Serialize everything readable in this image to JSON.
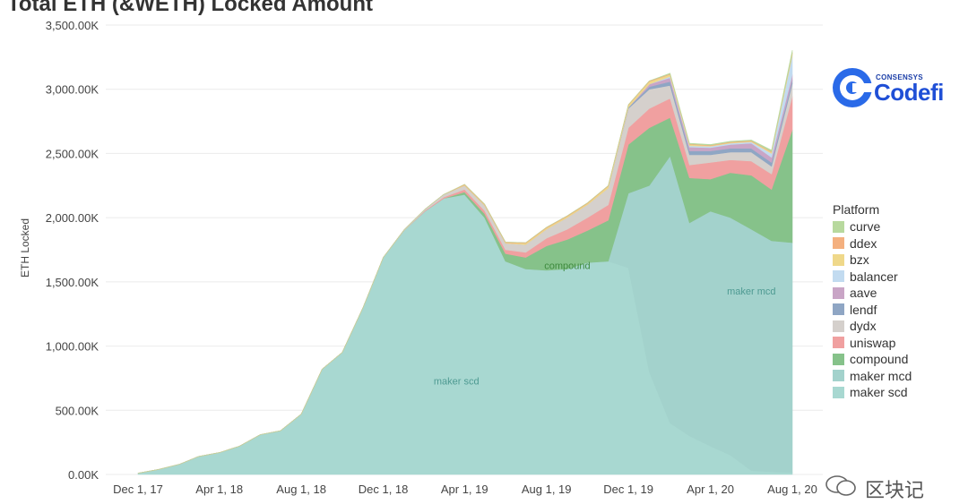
{
  "chart_data": {
    "type": "area",
    "stacked": true,
    "title": "Total ETH (&WETH) Locked Amount",
    "ylabel": "ETH Locked",
    "xlabel": "",
    "x_range": [
      "2017-12-01",
      "2020-08-01"
    ],
    "ylim": [
      0,
      3500000
    ],
    "y_ticks": [
      0,
      500000,
      1000000,
      1500000,
      2000000,
      2500000,
      3000000,
      3500000
    ],
    "y_tick_labels": [
      "0.00K",
      "500.00K",
      "1,000.00K",
      "1,500.00K",
      "2,000.00K",
      "2,500.00K",
      "3,000.00K",
      "3,500.00K"
    ],
    "x_tick_labels": [
      "Dec 1, 17",
      "Apr 1, 18",
      "Aug 1, 18",
      "Dec 1, 18",
      "Apr 1, 19",
      "Aug 1, 19",
      "Dec 1, 19",
      "Apr 1, 20",
      "Aug 1, 20"
    ],
    "grid": true,
    "legend_position": "right",
    "legend_title": "Platform",
    "x": [
      "2017-12-01",
      "2018-01-01",
      "2018-02-01",
      "2018-03-01",
      "2018-04-01",
      "2018-05-01",
      "2018-06-01",
      "2018-07-01",
      "2018-08-01",
      "2018-09-01",
      "2018-10-01",
      "2018-11-01",
      "2018-12-01",
      "2019-01-01",
      "2019-02-01",
      "2019-03-01",
      "2019-04-01",
      "2019-05-01",
      "2019-06-01",
      "2019-07-01",
      "2019-08-01",
      "2019-09-01",
      "2019-10-01",
      "2019-11-01",
      "2019-12-01",
      "2020-01-01",
      "2020-02-01",
      "2020-03-01",
      "2020-04-01",
      "2020-05-01",
      "2020-06-01",
      "2020-07-01",
      "2020-08-01"
    ],
    "series": [
      {
        "name": "maker scd",
        "color": "#a8d8d1",
        "values": [
          10000,
          40000,
          80000,
          140000,
          170000,
          220000,
          310000,
          340000,
          470000,
          820000,
          950000,
          1300000,
          1690000,
          1900000,
          2050000,
          2150000,
          2180000,
          2000000,
          1660000,
          1600000,
          1590000,
          1600000,
          1650000,
          1660000,
          1610000,
          800000,
          400000,
          300000,
          220000,
          150000,
          30000,
          20000,
          15000
        ]
      },
      {
        "name": "maker mcd",
        "color": "#a3d2cc",
        "values": [
          0,
          0,
          0,
          0,
          0,
          0,
          0,
          0,
          0,
          0,
          0,
          0,
          0,
          0,
          0,
          0,
          0,
          0,
          0,
          0,
          0,
          0,
          0,
          0,
          580000,
          1450000,
          2080000,
          1660000,
          1830000,
          1850000,
          1880000,
          1800000,
          1790000
        ]
      },
      {
        "name": "compound",
        "color": "#86c28a",
        "values": [
          0,
          0,
          0,
          0,
          0,
          0,
          0,
          0,
          0,
          0,
          0,
          0,
          0,
          0,
          0,
          0,
          20000,
          30000,
          60000,
          90000,
          190000,
          230000,
          250000,
          320000,
          380000,
          450000,
          300000,
          350000,
          250000,
          350000,
          420000,
          400000,
          880000
        ]
      },
      {
        "name": "uniswap",
        "color": "#f0a0a0",
        "values": [
          0,
          0,
          0,
          0,
          0,
          0,
          0,
          0,
          0,
          0,
          0,
          0,
          0,
          0,
          5000,
          10000,
          20000,
          25000,
          30000,
          40000,
          60000,
          80000,
          100000,
          120000,
          130000,
          150000,
          150000,
          100000,
          130000,
          100000,
          110000,
          120000,
          260000
        ]
      },
      {
        "name": "dydx",
        "color": "#d5d0cc",
        "values": [
          0,
          0,
          0,
          0,
          0,
          0,
          0,
          0,
          0,
          0,
          0,
          0,
          0,
          5000,
          10000,
          20000,
          30000,
          40000,
          50000,
          60000,
          70000,
          90000,
          100000,
          130000,
          150000,
          150000,
          100000,
          80000,
          60000,
          60000,
          70000,
          60000,
          100000
        ]
      },
      {
        "name": "lendf",
        "color": "#8fa6c4",
        "values": [
          0,
          0,
          0,
          0,
          0,
          0,
          0,
          0,
          0,
          0,
          0,
          0,
          0,
          0,
          0,
          0,
          0,
          0,
          0,
          0,
          0,
          0,
          0,
          0,
          10000,
          20000,
          30000,
          30000,
          30000,
          30000,
          30000,
          30000,
          30000
        ]
      },
      {
        "name": "aave",
        "color": "#c9a5c6",
        "values": [
          0,
          0,
          0,
          0,
          0,
          0,
          0,
          0,
          0,
          0,
          0,
          0,
          0,
          0,
          0,
          0,
          0,
          0,
          0,
          0,
          0,
          0,
          0,
          0,
          0,
          20000,
          30000,
          30000,
          25000,
          30000,
          40000,
          40000,
          40000
        ]
      },
      {
        "name": "balancer",
        "color": "#c2dbf0",
        "values": [
          0,
          0,
          0,
          0,
          0,
          0,
          0,
          0,
          0,
          0,
          0,
          0,
          0,
          0,
          0,
          0,
          0,
          0,
          0,
          0,
          0,
          0,
          0,
          0,
          0,
          0,
          10000,
          10000,
          10000,
          10000,
          10000,
          30000,
          150000
        ]
      },
      {
        "name": "bzx",
        "color": "#efd88a",
        "values": [
          0,
          0,
          0,
          0,
          0,
          0,
          0,
          0,
          0,
          0,
          0,
          0,
          0,
          0,
          0,
          0,
          5000,
          5000,
          5000,
          10000,
          10000,
          10000,
          10000,
          15000,
          15000,
          20000,
          15000,
          10000,
          5000,
          5000,
          5000,
          10000,
          15000
        ]
      },
      {
        "name": "ddex",
        "color": "#f4b07f",
        "values": [
          0,
          0,
          0,
          0,
          0,
          0,
          0,
          0,
          0,
          0,
          0,
          0,
          0,
          0,
          0,
          0,
          5000,
          5000,
          5000,
          5000,
          5000,
          5000,
          5000,
          5000,
          5000,
          5000,
          5000,
          5000,
          5000,
          5000,
          5000,
          5000,
          5000
        ]
      },
      {
        "name": "curve",
        "color": "#b8d99e",
        "values": [
          0,
          0,
          0,
          0,
          0,
          0,
          0,
          0,
          0,
          0,
          0,
          0,
          0,
          0,
          0,
          0,
          0,
          0,
          0,
          0,
          0,
          0,
          0,
          0,
          0,
          0,
          5000,
          5000,
          5000,
          5000,
          5000,
          10000,
          20000
        ]
      }
    ],
    "legend_order": [
      "curve",
      "ddex",
      "bzx",
      "balancer",
      "aave",
      "lendf",
      "dydx",
      "uniswap",
      "compound",
      "maker mcd",
      "maker scd"
    ],
    "area_labels": [
      {
        "series": "maker scd",
        "text": "maker scd",
        "x": "2019-03-20",
        "y": 700000,
        "color": "#4e9a92"
      },
      {
        "series": "compound",
        "text": "compound",
        "x": "2019-09-01",
        "y": 1600000,
        "color": "#3d8a3d"
      },
      {
        "series": "maker mcd",
        "text": "maker mcd",
        "x": "2020-06-01",
        "y": 1400000,
        "color": "#4e9a92"
      }
    ]
  },
  "logo": {
    "superscript": "CONSENSYS",
    "wordmark": "Codefi"
  },
  "watermark": {
    "text": "区块记"
  }
}
